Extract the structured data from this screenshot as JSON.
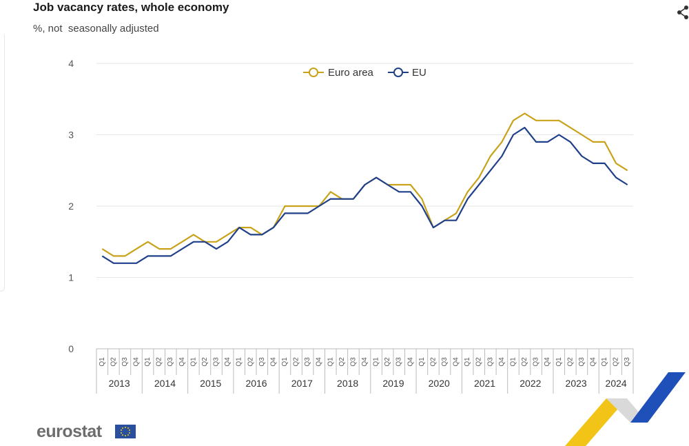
{
  "header": {
    "title": "Job vacancy rates, whole economy",
    "subtitle": "%, not  seasonally adjusted"
  },
  "logo": {
    "text": "eurostat"
  },
  "icons": {
    "share": "share-icon",
    "flag": "eu-flag-icon"
  },
  "colors": {
    "euro_area": "#c9a21a",
    "eu": "#1f3f8a",
    "grid": "#e6e6e6",
    "axis_text": "#555555"
  },
  "chart_data": {
    "type": "line",
    "title": "Job vacancy rates, whole economy",
    "subtitle": "%, not  seasonally adjusted",
    "ylim": [
      0,
      4
    ],
    "yticks": [
      "0",
      "1",
      "2",
      "3",
      "4"
    ],
    "grid": true,
    "legend_position": "top-center",
    "quarters": [
      "Q1",
      "Q2",
      "Q3",
      "Q4",
      "Q1",
      "Q2",
      "Q3",
      "Q4",
      "Q1",
      "Q2",
      "Q3",
      "Q4",
      "Q1",
      "Q2",
      "Q3",
      "Q4",
      "Q1",
      "Q2",
      "Q3",
      "Q4",
      "Q1",
      "Q2",
      "Q3",
      "Q4",
      "Q1",
      "Q2",
      "Q3",
      "Q4",
      "Q1",
      "Q2",
      "Q3",
      "Q4",
      "Q1",
      "Q2",
      "Q3",
      "Q4",
      "Q1",
      "Q2",
      "Q3",
      "Q4",
      "Q1",
      "Q2",
      "Q3",
      "Q4",
      "Q1",
      "Q2",
      "Q3"
    ],
    "years": [
      "2013",
      "2014",
      "2015",
      "2016",
      "2017",
      "2018",
      "2019",
      "2020",
      "2021",
      "2022",
      "2023",
      "2024"
    ],
    "series": [
      {
        "name": "Euro area",
        "values": [
          1.4,
          1.3,
          1.3,
          1.4,
          1.5,
          1.4,
          1.4,
          1.5,
          1.6,
          1.5,
          1.5,
          1.6,
          1.7,
          1.7,
          1.6,
          1.7,
          2.0,
          2.0,
          2.0,
          2.0,
          2.2,
          2.1,
          2.1,
          2.3,
          2.4,
          2.3,
          2.3,
          2.3,
          2.1,
          1.7,
          1.8,
          1.9,
          2.2,
          2.4,
          2.7,
          2.9,
          3.2,
          3.3,
          3.2,
          3.2,
          3.2,
          3.1,
          3.0,
          2.9,
          2.9,
          2.6,
          2.5
        ]
      },
      {
        "name": "EU",
        "values": [
          1.3,
          1.2,
          1.2,
          1.2,
          1.3,
          1.3,
          1.3,
          1.4,
          1.5,
          1.5,
          1.4,
          1.5,
          1.7,
          1.6,
          1.6,
          1.7,
          1.9,
          1.9,
          1.9,
          2.0,
          2.1,
          2.1,
          2.1,
          2.3,
          2.4,
          2.3,
          2.2,
          2.2,
          2.0,
          1.7,
          1.8,
          1.8,
          2.1,
          2.3,
          2.5,
          2.7,
          3.0,
          3.1,
          2.9,
          2.9,
          3.0,
          2.9,
          2.7,
          2.6,
          2.6,
          2.4,
          2.3
        ]
      }
    ]
  }
}
